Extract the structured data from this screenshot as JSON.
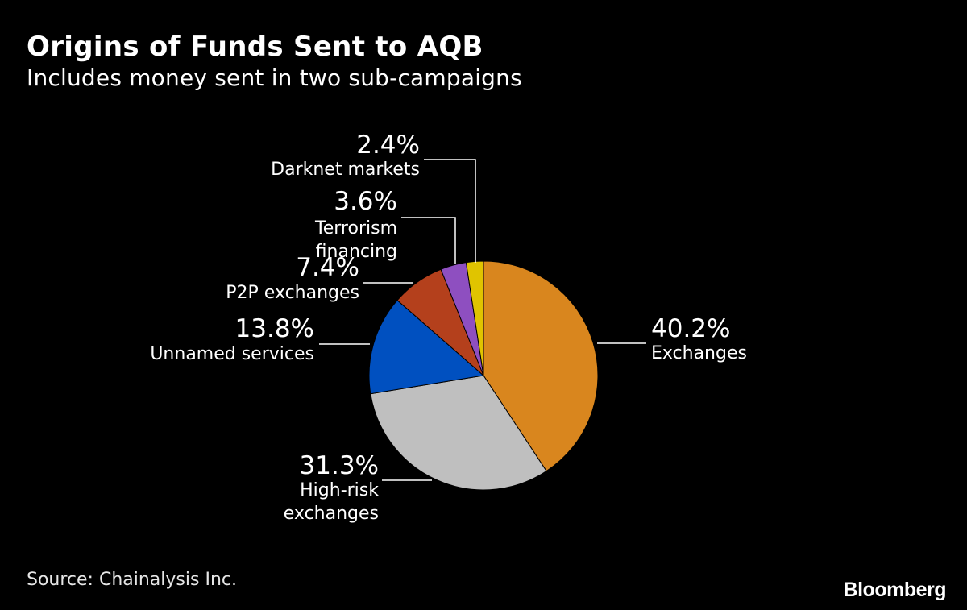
{
  "header": {
    "title": "Origins of Funds Sent to AQB",
    "subtitle": "Includes money sent in two sub-campaigns"
  },
  "footer": {
    "source": "Source: Chainalysis Inc.",
    "brand": "Bloomberg"
  },
  "chart_data": {
    "type": "pie",
    "title": "Origins of Funds Sent to AQB",
    "subtitle": "Includes money sent in two sub-campaigns",
    "legend": "none",
    "slices": [
      {
        "label": "Exchanges",
        "label_lines": [
          "Exchanges"
        ],
        "pct_label": "40.2%",
        "value": 40.2,
        "color": "#d9861e"
      },
      {
        "label": "High-risk exchanges",
        "label_lines": [
          "High-risk",
          "exchanges"
        ],
        "pct_label": "31.3%",
        "value": 31.3,
        "color": "#bfbfbf"
      },
      {
        "label": "Unnamed services",
        "label_lines": [
          "Unnamed services"
        ],
        "pct_label": "13.8%",
        "value": 13.8,
        "color": "#0050c0"
      },
      {
        "label": "P2P exchanges",
        "label_lines": [
          "P2P exchanges"
        ],
        "pct_label": "7.4%",
        "value": 7.4,
        "color": "#b4401c"
      },
      {
        "label": "Terrorism financing",
        "label_lines": [
          "Terrorism",
          "financing"
        ],
        "pct_label": "3.6%",
        "value": 3.6,
        "color": "#8e4fc0"
      },
      {
        "label": "Darknet markets",
        "label_lines": [
          "Darknet markets"
        ],
        "pct_label": "2.4%",
        "value": 2.4,
        "color": "#e0c400"
      }
    ]
  }
}
